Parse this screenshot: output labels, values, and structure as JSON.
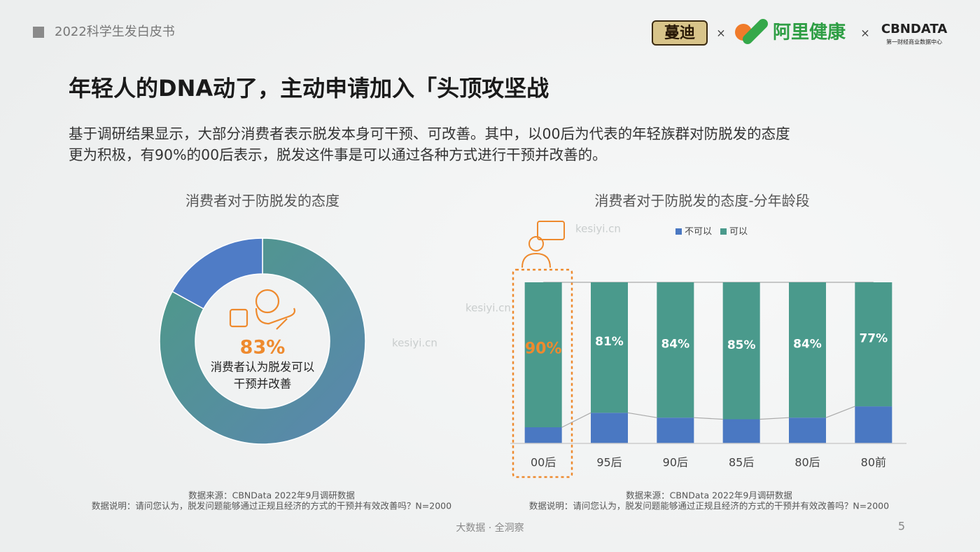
{
  "header": {
    "report": "2022科学生发白皮书",
    "logos": [
      "蔓迪",
      "×",
      "阿里健康",
      "×",
      "CBNDATA",
      "第一财经商业数据中心"
    ]
  },
  "title": "年轻人的DNA动了，主动申请加入「头顶攻坚战",
  "subtitle": [
    "基于调研结果显示，大部分消费者表示脱发本身可干预、可改善。其中，以00后为代表的年轻族群对防脱发的态度",
    "更为积极，有90%的00后表示，脱发这件事是可以通过各种方式进行干预并改善的。"
  ],
  "watermark": "kesiyi.cn",
  "chart_data": [
    {
      "type": "donut",
      "title": "消费者对于防脱发的态度",
      "values": [
        83,
        17
      ],
      "value_labels": [
        "83%",
        null
      ],
      "colors": [
        "#4e9a86",
        "#4f7cc6"
      ],
      "center_text": [
        "消费者认为脱发可以",
        "干预并改善"
      ],
      "source": "数据来源：CBNData 2022年9月调研数据",
      "note": "数据说明：请问您认为，脱发问题能够通过正规且经济的方式的干预并有效改善吗？N=2000"
    },
    {
      "type": "stacked-bar",
      "title": "消费者对于防脱发的态度-分年龄段",
      "categories": [
        "00后",
        "95后",
        "90后",
        "85后",
        "80后",
        "80前"
      ],
      "ylim": [
        0,
        100
      ],
      "series": [
        {
          "name": "不可以",
          "color": "#4a78c2",
          "values": [
            10,
            19,
            16,
            15,
            16,
            23
          ]
        },
        {
          "name": "可以",
          "color": "#4a9a8c",
          "values": [
            90,
            81,
            84,
            85,
            84,
            77
          ],
          "value_labels": [
            "90%",
            "81%",
            "84%",
            "85%",
            "84%",
            "77%"
          ]
        }
      ],
      "source": "数据来源：CBNData 2022年9月调研数据",
      "note": "数据说明：请问您认为，脱发问题能够通过正规且经济的方式的干预并有效改善吗？N=2000"
    }
  ],
  "footer": {
    "tagline": "大数据 · 全洞察",
    "page": "5"
  }
}
